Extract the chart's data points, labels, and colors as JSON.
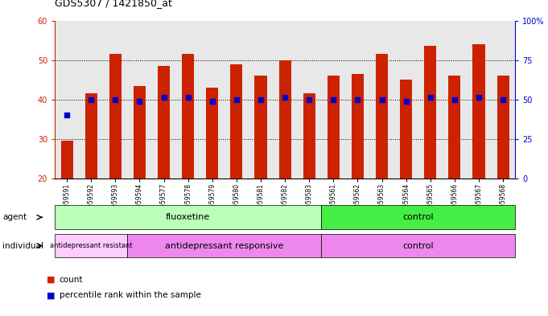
{
  "title": "GDS5307 / 1421850_at",
  "samples": [
    "GSM1059591",
    "GSM1059592",
    "GSM1059593",
    "GSM1059594",
    "GSM1059577",
    "GSM1059578",
    "GSM1059579",
    "GSM1059580",
    "GSM1059581",
    "GSM1059582",
    "GSM1059583",
    "GSM1059561",
    "GSM1059562",
    "GSM1059563",
    "GSM1059564",
    "GSM1059565",
    "GSM1059566",
    "GSM1059567",
    "GSM1059568"
  ],
  "bar_values": [
    29.5,
    41.5,
    51.5,
    43.5,
    48.5,
    51.5,
    43.0,
    49.0,
    46.0,
    50.0,
    41.5,
    46.0,
    46.5,
    51.5,
    45.0,
    53.5,
    46.0,
    54.0,
    46.0
  ],
  "blue_dot_values": [
    36.0,
    40.0,
    40.0,
    39.5,
    40.5,
    40.5,
    39.5,
    40.0,
    40.0,
    40.5,
    40.0,
    40.0,
    40.0,
    40.0,
    39.5,
    40.5,
    40.0,
    40.5,
    40.0
  ],
  "ylim_left": [
    20,
    60
  ],
  "ylim_right": [
    0,
    100
  ],
  "yticks_left": [
    20,
    30,
    40,
    50,
    60
  ],
  "yticks_right": [
    0,
    25,
    50,
    75,
    100
  ],
  "ytick_labels_right": [
    "0",
    "25",
    "50",
    "75",
    "100%"
  ],
  "bar_color": "#cc2200",
  "dot_color": "#0000cc",
  "bg_color": "#e8e8e8",
  "agent_groups": [
    {
      "label": "fluoxetine",
      "start": 0,
      "end": 11,
      "color": "#bbffbb"
    },
    {
      "label": "control",
      "start": 11,
      "end": 19,
      "color": "#44ee44"
    }
  ],
  "indiv_colors": [
    "#ffccff",
    "#ee88ee",
    "#ee88ee"
  ],
  "indiv_labels": [
    "antidepressant resistant",
    "antidepressant responsive",
    "control"
  ],
  "indiv_ranges": [
    [
      0,
      3
    ],
    [
      3,
      11
    ],
    [
      11,
      19
    ]
  ],
  "indiv_fontsizes": [
    6,
    8,
    8
  ],
  "legend_count_color": "#cc2200",
  "legend_dot_color": "#0000cc",
  "fig_width": 6.81,
  "fig_height": 3.93,
  "dpi": 100
}
